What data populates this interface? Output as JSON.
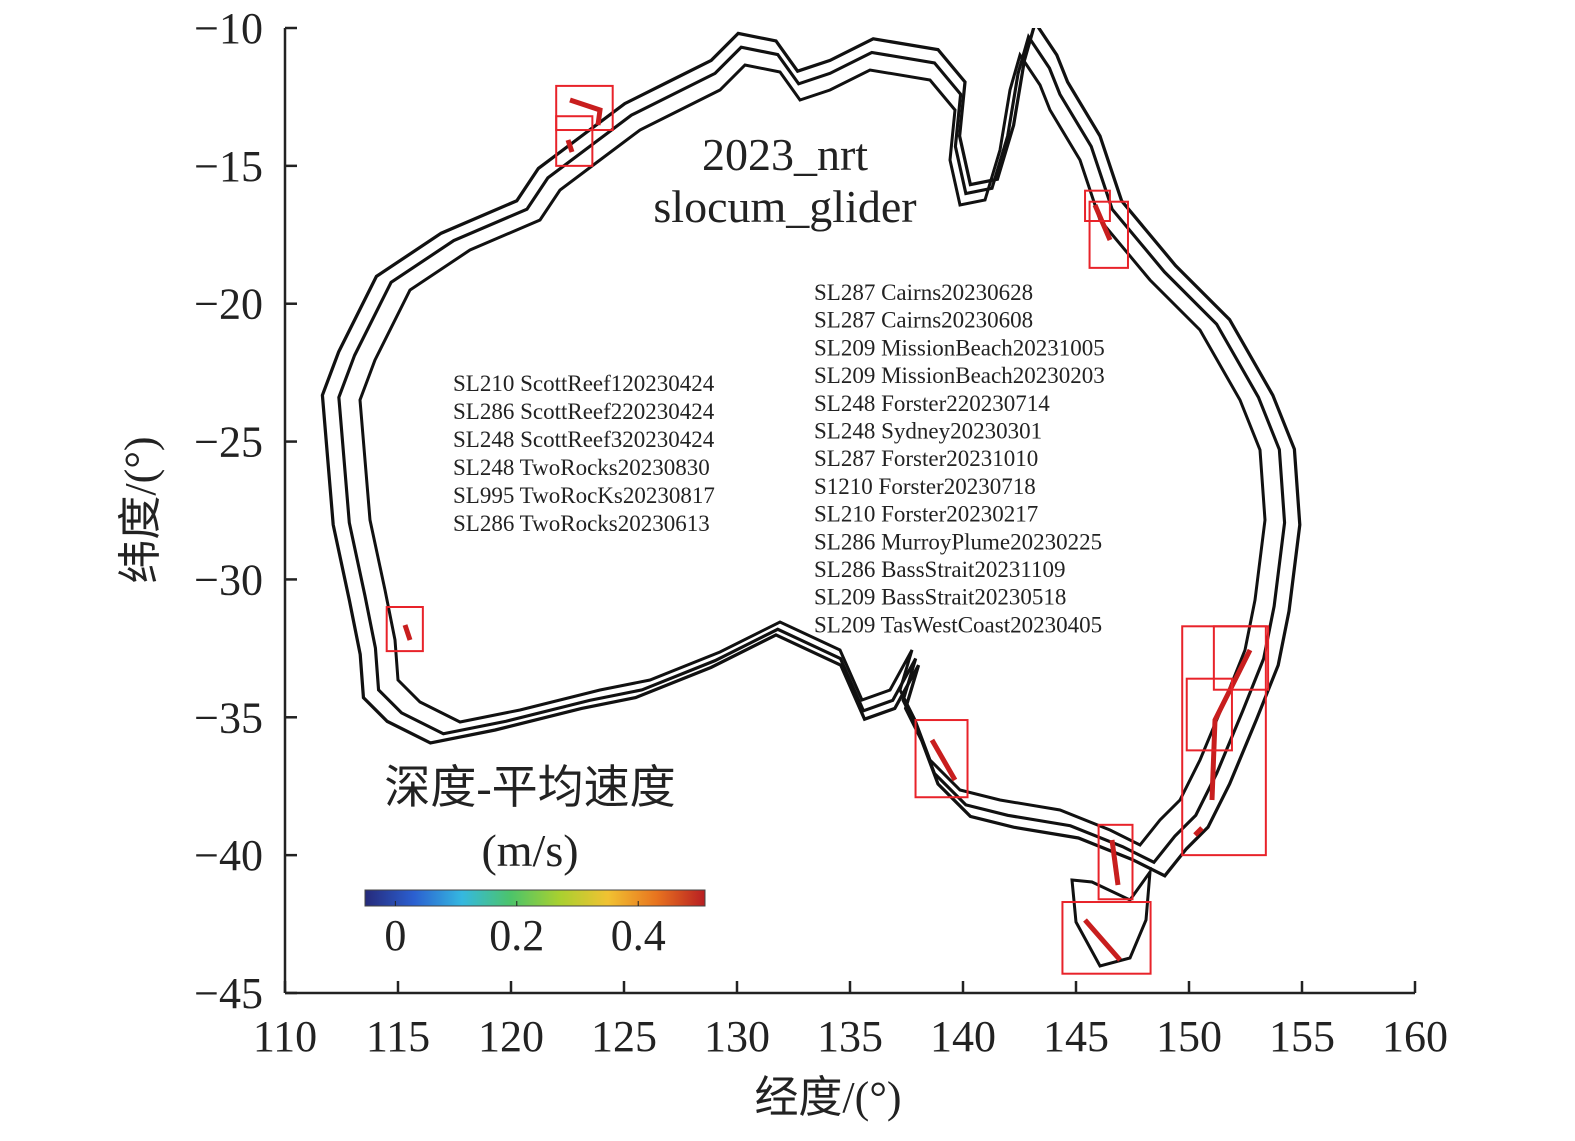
{
  "chart_data": {
    "type": "map",
    "title": [
      "2023_nrt",
      "slocum_glider"
    ],
    "xlabel": "经度/(°)",
    "ylabel": "纬度/(°)",
    "xlim": [
      110,
      160
    ],
    "ylim": [
      -45,
      -10
    ],
    "xticks": [
      110,
      115,
      120,
      125,
      130,
      135,
      140,
      145,
      150,
      155,
      160
    ],
    "yticks": [
      {
        "value": -10,
        "label": "−10"
      },
      {
        "value": -15,
        "label": "−15"
      },
      {
        "value": -20,
        "label": "−20"
      },
      {
        "value": -25,
        "label": "−25"
      },
      {
        "value": -30,
        "label": "−30"
      },
      {
        "value": -35,
        "label": "−35"
      },
      {
        "value": -40,
        "label": "−40"
      },
      {
        "value": -45,
        "label": "−45"
      }
    ],
    "box_color": "#e8232a",
    "regions": [
      {
        "lon": [
          122.0,
          124.5
        ],
        "lat": [
          -12.1,
          -13.7
        ]
      },
      {
        "lon": [
          122.0,
          123.6
        ],
        "lat": [
          -13.2,
          -15.0
        ]
      },
      {
        "lon": [
          114.5,
          116.1
        ],
        "lat": [
          -31.0,
          -32.6
        ]
      },
      {
        "lon": [
          145.4,
          146.5
        ],
        "lat": [
          -15.9,
          -17.0
        ]
      },
      {
        "lon": [
          145.6,
          147.3
        ],
        "lat": [
          -16.3,
          -18.7
        ]
      },
      {
        "lon": [
          137.9,
          140.2
        ],
        "lat": [
          -35.1,
          -37.9
        ]
      },
      {
        "lon": [
          144.4,
          148.3
        ],
        "lat": [
          -41.7,
          -44.3
        ]
      },
      {
        "lon": [
          146.0,
          147.5
        ],
        "lat": [
          -38.9,
          -41.6
        ]
      },
      {
        "lon": [
          149.7,
          153.4
        ],
        "lat": [
          -31.7,
          -40.0
        ]
      },
      {
        "lon": [
          151.1,
          153.5
        ],
        "lat": [
          -31.7,
          -34.0
        ]
      },
      {
        "lon": [
          149.9,
          151.9
        ],
        "lat": [
          -33.6,
          -36.2
        ]
      }
    ],
    "west_deployments": [
      "SL210 ScottReef120230424",
      "SL286 ScottReef220230424",
      "SL248 ScottReef320230424",
      "SL248 TwoRocks20230830",
      "SL995 TwoRocKs20230817",
      "SL286 TwoRocks20230613"
    ],
    "east_deployments": [
      "SL287 Cairns20230628",
      "SL287 Cairns20230608",
      "SL209 MissionBeach20231005",
      "SL209 MissionBeach20230203",
      "SL248 Forster220230714",
      "SL248 Sydney20230301",
      "SL287 Forster20231010",
      "S1210 Forster20230718",
      "SL210 Forster20230217",
      "SL286 MurroyPlume20230225",
      "SL286 BassStrait20231109",
      "SL209 BassStrait20230518",
      "SL209 TasWestCoast20230405"
    ],
    "colorbar": {
      "label": [
        "深度-平均速度",
        "(m/s)"
      ],
      "clim": [
        -0.05,
        0.51
      ],
      "ticks": [
        0,
        0.2,
        0.4
      ],
      "colormap": [
        "#262a7a",
        "#2b5fd0",
        "#35b8e0",
        "#4cc46a",
        "#a8d030",
        "#f1c232",
        "#e8741f",
        "#b81e22"
      ]
    }
  }
}
